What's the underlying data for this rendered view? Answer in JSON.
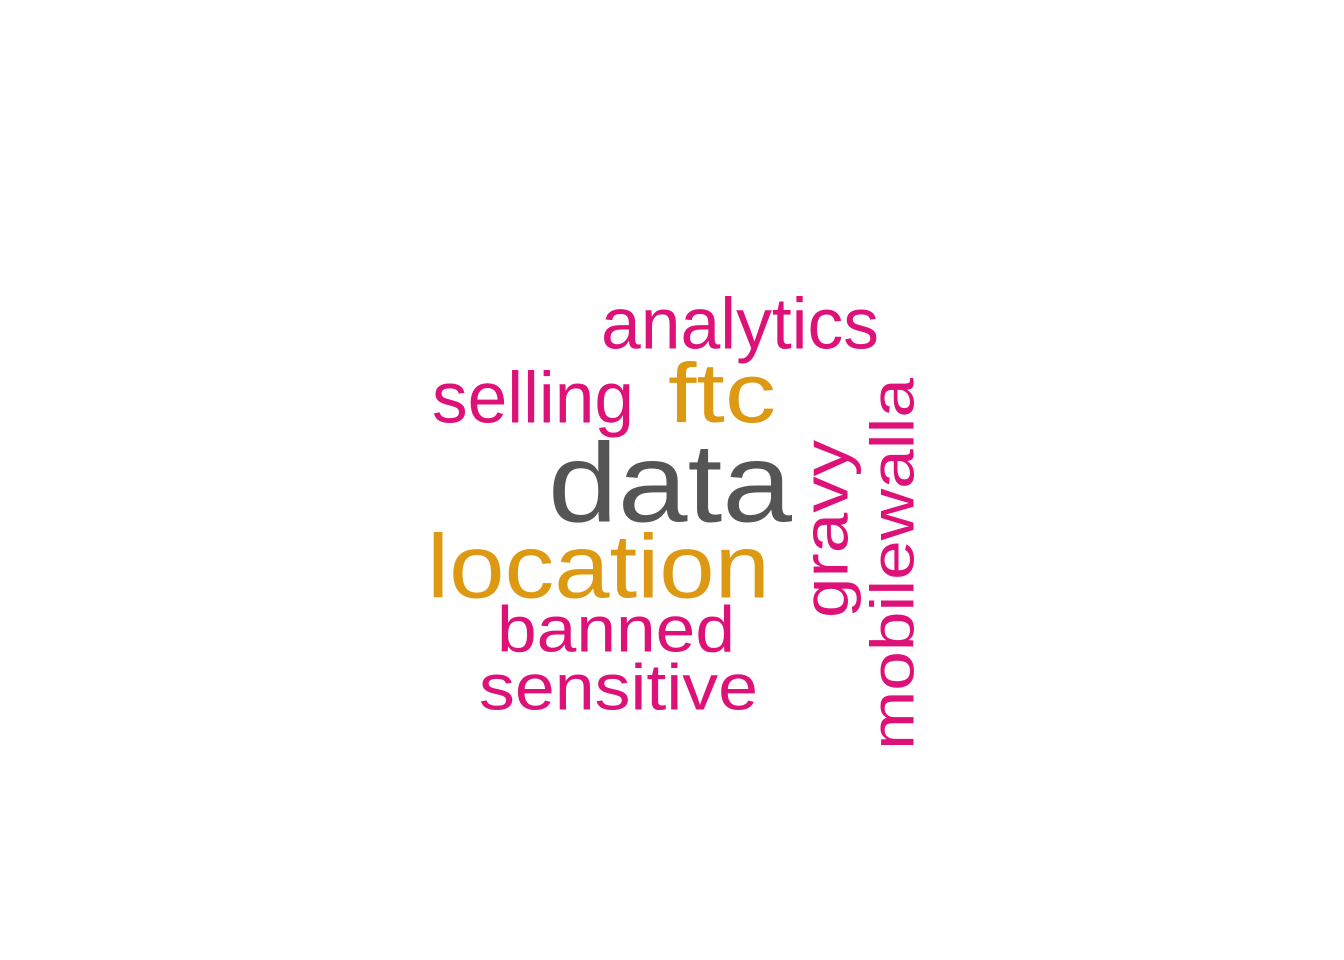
{
  "colors": {
    "high": "#555555",
    "mid": "#DD9911",
    "low": "#DD1177"
  },
  "words": [
    {
      "text": "data",
      "color": "#555555",
      "rotated": false
    },
    {
      "text": "location",
      "color": "#DD9911",
      "rotated": false
    },
    {
      "text": "ftc",
      "color": "#DD9911",
      "rotated": false
    },
    {
      "text": "analytics",
      "color": "#DD1177",
      "rotated": false
    },
    {
      "text": "selling",
      "color": "#DD1177",
      "rotated": false
    },
    {
      "text": "banned",
      "color": "#DD1177",
      "rotated": false
    },
    {
      "text": "sensitive",
      "color": "#DD1177",
      "rotated": false
    },
    {
      "text": "gravy",
      "color": "#DD1177",
      "rotated": true
    },
    {
      "text": "mobilewalla",
      "color": "#DD1177",
      "rotated": true
    }
  ]
}
